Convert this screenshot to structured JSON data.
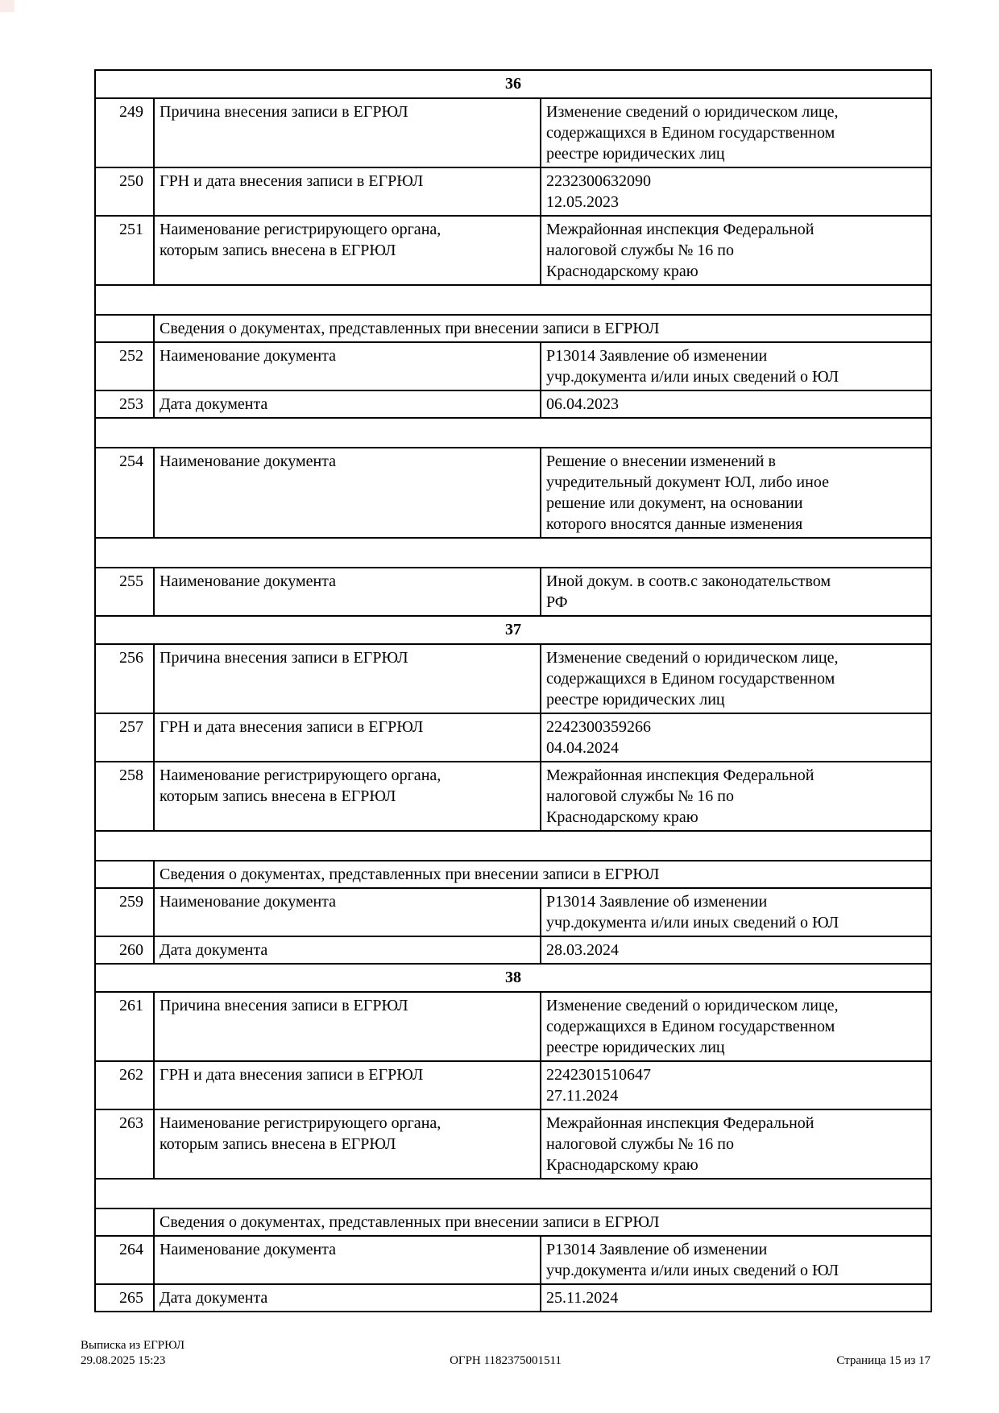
{
  "colors": {
    "text": "#000000",
    "border": "#000000",
    "background": "#ffffff",
    "corner_mark": "#fbecec"
  },
  "table": {
    "rows": [
      {
        "type": "section",
        "label": "36"
      },
      {
        "type": "data",
        "num": "249",
        "label": "Причина внесения записи в ЕГРЮЛ",
        "value": "Изменение сведений о юридическом лице,\nсодержащихся в Едином государственном\nреестре юридических лиц"
      },
      {
        "type": "data",
        "num": "250",
        "label": "ГРН и дата внесения записи в ЕГРЮЛ",
        "value": "2232300632090\n12.05.2023"
      },
      {
        "type": "data",
        "num": "251",
        "label": "Наименование регистрирующего органа,\nкоторым запись внесена в ЕГРЮЛ",
        "value": "Межрайонная инспекция Федеральной\nналоговой службы № 16 по\nКраснодарскому краю"
      },
      {
        "type": "empty"
      },
      {
        "type": "subheader",
        "label": "Сведения о документах, представленных при внесении записи в ЕГРЮЛ"
      },
      {
        "type": "data",
        "num": "252",
        "label": "Наименование документа",
        "value": "Р13014 Заявление об изменении\nучр.документа и/или иных сведений о ЮЛ"
      },
      {
        "type": "data",
        "num": "253",
        "label": "Дата документа",
        "value": "06.04.2023"
      },
      {
        "type": "empty"
      },
      {
        "type": "data",
        "num": "254",
        "label": "Наименование документа",
        "value": "Решение о внесении изменений в\nучредительный документ ЮЛ, либо иное\nрешение или документ, на основании\nкоторого вносятся данные изменения"
      },
      {
        "type": "empty"
      },
      {
        "type": "data",
        "num": "255",
        "label": "Наименование документа",
        "value": "Иной докум. в соотв.с законодательством\nРФ"
      },
      {
        "type": "section",
        "label": "37"
      },
      {
        "type": "data",
        "num": "256",
        "label": "Причина внесения записи в ЕГРЮЛ",
        "value": "Изменение сведений о юридическом лице,\nсодержащихся в Едином государственном\nреестре юридических лиц"
      },
      {
        "type": "data",
        "num": "257",
        "label": "ГРН и дата внесения записи в ЕГРЮЛ",
        "value": "2242300359266\n04.04.2024"
      },
      {
        "type": "data",
        "num": "258",
        "label": "Наименование регистрирующего органа,\nкоторым запись внесена в ЕГРЮЛ",
        "value": "Межрайонная инспекция Федеральной\nналоговой службы № 16 по\nКраснодарскому краю"
      },
      {
        "type": "empty"
      },
      {
        "type": "subheader",
        "label": "Сведения о документах, представленных при внесении записи в ЕГРЮЛ"
      },
      {
        "type": "data",
        "num": "259",
        "label": "Наименование документа",
        "value": "Р13014 Заявление об изменении\nучр.документа и/или иных сведений о ЮЛ"
      },
      {
        "type": "data",
        "num": "260",
        "label": "Дата документа",
        "value": "28.03.2024"
      },
      {
        "type": "section",
        "label": "38"
      },
      {
        "type": "data",
        "num": "261",
        "label": "Причина внесения записи в ЕГРЮЛ",
        "value": "Изменение сведений о юридическом лице,\nсодержащихся в Едином государственном\nреестре юридических лиц"
      },
      {
        "type": "data",
        "num": "262",
        "label": "ГРН и дата внесения записи в ЕГРЮЛ",
        "value": "2242301510647\n27.11.2024"
      },
      {
        "type": "data",
        "num": "263",
        "label": "Наименование регистрирующего органа,\nкоторым запись внесена в ЕГРЮЛ",
        "value": "Межрайонная инспекция Федеральной\nналоговой службы № 16 по\nКраснодарскому краю"
      },
      {
        "type": "empty"
      },
      {
        "type": "subheader",
        "label": "Сведения о документах, представленных при внесении записи в ЕГРЮЛ"
      },
      {
        "type": "data",
        "num": "264",
        "label": "Наименование документа",
        "value": "Р13014 Заявление об изменении\nучр.документа и/или иных сведений о ЮЛ"
      },
      {
        "type": "data",
        "num": "265",
        "label": "Дата документа",
        "value": "25.11.2024"
      }
    ]
  },
  "footer": {
    "title": "Выписка из ЕГРЮЛ",
    "datetime": "29.08.2025 15:23",
    "ogrn": "ОГРН 1182375001511",
    "page": "Страница 15 из 17"
  }
}
